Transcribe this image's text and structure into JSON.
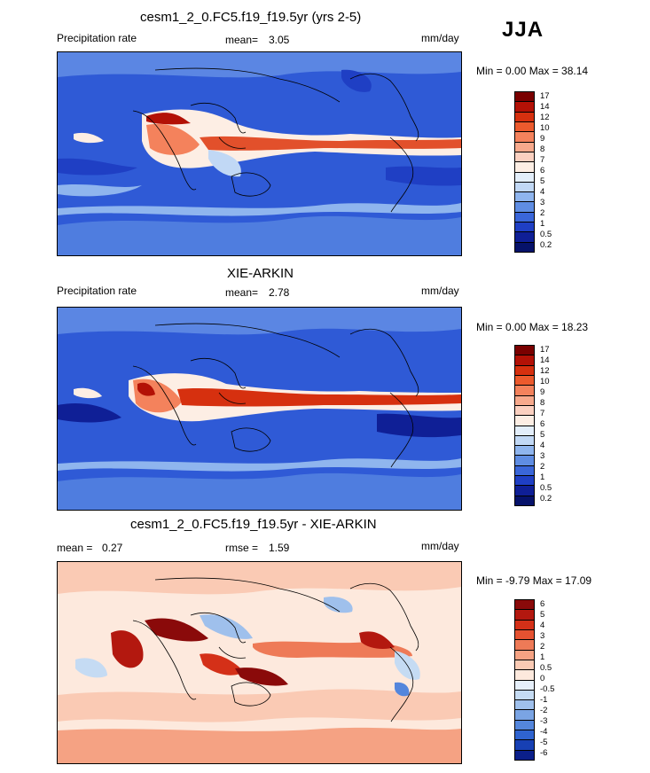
{
  "season": "JJA",
  "panels": [
    {
      "title": "cesm1_2_0.FC5.f19_f19.5yr (yrs 2-5)",
      "left_label": "Precipitation rate",
      "mid_label": "mean=",
      "mid_value": "3.05",
      "right_label": "mm/day",
      "minmax": "Min =   0.00 Max =  38.14",
      "colorbar_ticks": [
        "17",
        "14",
        "12",
        "10",
        "9",
        "8",
        "7",
        "6",
        "5",
        "4",
        "3",
        "2",
        "1",
        "0.5",
        "0.2"
      ],
      "colorbar_colors": [
        "#7a0000",
        "#b31106",
        "#d6300f",
        "#ec5a2d",
        "#f4825c",
        "#f7a98c",
        "#fbd0c0",
        "#fdeee4",
        "#e3eefa",
        "#c1d8f5",
        "#8fb5ee",
        "#5f8de3",
        "#3a66d9",
        "#1f3fc4",
        "#0f1f96",
        "#06126a"
      ]
    },
    {
      "title": "XIE-ARKIN",
      "left_label": "Precipitation rate",
      "mid_label": "mean=",
      "mid_value": "2.78",
      "right_label": "mm/day",
      "minmax": "Min =   0.00 Max =  18.23",
      "colorbar_ticks": [
        "17",
        "14",
        "12",
        "10",
        "9",
        "8",
        "7",
        "6",
        "5",
        "4",
        "3",
        "2",
        "1",
        "0.5",
        "0.2"
      ],
      "colorbar_colors": [
        "#7a0000",
        "#b31106",
        "#d6300f",
        "#ec5a2d",
        "#f4825c",
        "#f7a98c",
        "#fbd0c0",
        "#fdeee4",
        "#e3eefa",
        "#c1d8f5",
        "#8fb5ee",
        "#5f8de3",
        "#3a66d9",
        "#1f3fc4",
        "#0f1f96",
        "#06126a"
      ]
    },
    {
      "title": "cesm1_2_0.FC5.f19_f19.5yr - XIE-ARKIN",
      "left_label": "mean =",
      "left_value": "0.27",
      "mid_label": "rmse =",
      "mid_value": "1.59",
      "right_label": "mm/day",
      "minmax": "Min =  -9.79 Max =  17.09",
      "colorbar_ticks": [
        "6",
        "5",
        "4",
        "3",
        "2",
        "1",
        "0.5",
        "0",
        "-0.5",
        "-1",
        "-2",
        "-3",
        "-4",
        "-5",
        "-6"
      ],
      "colorbar_colors": [
        "#8a0a0a",
        "#b3180f",
        "#d43018",
        "#e55231",
        "#ee7a57",
        "#f5a283",
        "#facab4",
        "#fde9dd",
        "#e6effa",
        "#c5dbf3",
        "#9fc0ec",
        "#7aa4e4",
        "#5486dc",
        "#2f63cf",
        "#1740b4",
        "#0b1f8a"
      ]
    }
  ]
}
